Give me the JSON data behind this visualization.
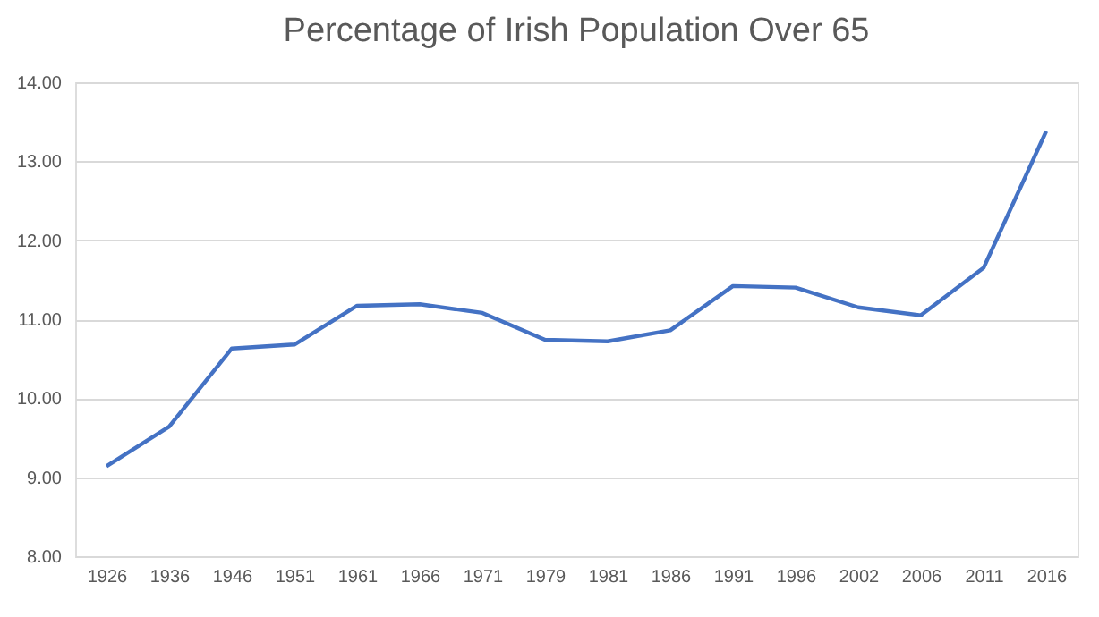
{
  "chart_data": {
    "type": "line",
    "title": "Percentage of Irish Population Over 65",
    "categories": [
      "1926",
      "1936",
      "1946",
      "1951",
      "1961",
      "1966",
      "1971",
      "1979",
      "1981",
      "1986",
      "1991",
      "1996",
      "2002",
      "2006",
      "2011",
      "2016"
    ],
    "series": [
      {
        "color": "#4472c4",
        "values": [
          9.14,
          9.64,
          10.63,
          10.68,
          11.17,
          11.19,
          11.08,
          10.74,
          10.72,
          10.86,
          11.42,
          11.4,
          11.15,
          11.05,
          11.65,
          13.38
        ]
      }
    ],
    "ylim": [
      8,
      14
    ],
    "yticks": [
      {
        "value": 8,
        "label": "8.00"
      },
      {
        "value": 9,
        "label": "9.00"
      },
      {
        "value": 10,
        "label": "10.00"
      },
      {
        "value": 11,
        "label": "11.00"
      },
      {
        "value": 12,
        "label": "12.00"
      },
      {
        "value": 13,
        "label": "13.00"
      },
      {
        "value": 14,
        "label": "14.00"
      }
    ],
    "grid": "y",
    "marker": "none",
    "line_style": "solid"
  }
}
